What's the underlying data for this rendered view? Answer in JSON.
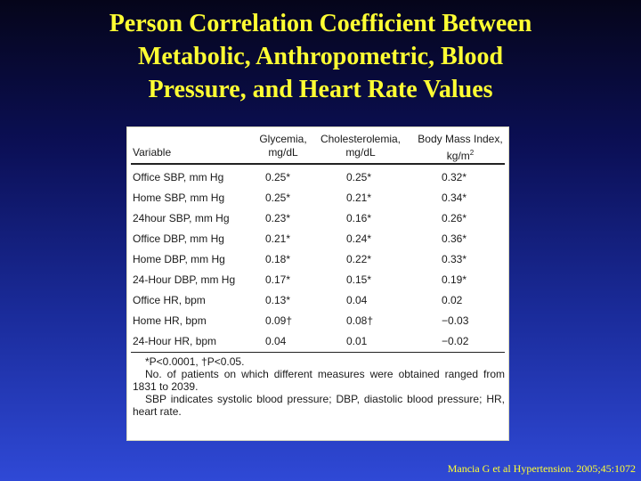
{
  "title_lines": [
    "Person Correlation Coefficient Between",
    "Metabolic, Anthropometric, Blood",
    "Pressure,  and  Heart Rate Values"
  ],
  "table": {
    "headers": {
      "variable": "Variable",
      "glycemia_l1": "Glycemia,",
      "glycemia_l2": "mg/dL",
      "chol_l1": "Cholesterolemia,",
      "chol_l2": "mg/dL",
      "bmi_l1": "Body Mass Index,",
      "bmi_l2": "kg/m",
      "bmi_sup": "2"
    },
    "rows": [
      {
        "variable": "Office SBP, mm Hg",
        "glycemia": "0.25*",
        "chol": "0.25*",
        "bmi": "0.32*"
      },
      {
        "variable": "Home SBP, mm Hg",
        "glycemia": "0.25*",
        "chol": "0.21*",
        "bmi": "0.34*"
      },
      {
        "variable": "24hour SBP,  mm Hg",
        "glycemia": "0.23*",
        "chol": "0.16*",
        "bmi": "0.26*"
      },
      {
        "variable": "Office DBP, mm Hg",
        "glycemia": "0.21*",
        "chol": "0.24*",
        "bmi": "0.36*"
      },
      {
        "variable": "Home DBP, mm Hg",
        "glycemia": "0.18*",
        "chol": "0.22*",
        "bmi": "0.33*"
      },
      {
        "variable": "24-Hour DBP, mm Hg",
        "glycemia": "0.17*",
        "chol": "0.15*",
        "bmi": "0.19*"
      },
      {
        "variable": "Office HR, bpm",
        "glycemia": "0.13*",
        "chol": "0.04",
        "bmi": "0.02"
      },
      {
        "variable": "Home HR, bpm",
        "glycemia": "0.09†",
        "chol": "0.08†",
        "bmi": "−0.03"
      },
      {
        "variable": "24-Hour HR, bpm",
        "glycemia": "0.04",
        "chol": "0.01",
        "bmi": "−0.02"
      }
    ],
    "footnotes": {
      "significance": "*P<0.0001, †P<0.05.",
      "patients_a": "No. of patients on which different measures were obtained ranged from",
      "patients_b": "1831 to 2039.",
      "abbrev_a": "SBP indicates systolic blood pressure; DBP, diastolic blood pressure; HR,",
      "abbrev_b": "heart rate."
    }
  },
  "citation": "Mancia G et al Hypertension. 2005;45:1072",
  "colors": {
    "title": "#ffff33",
    "background_top": "#05051a",
    "background_bottom": "#2f49d6",
    "panel": "#ffffff"
  }
}
